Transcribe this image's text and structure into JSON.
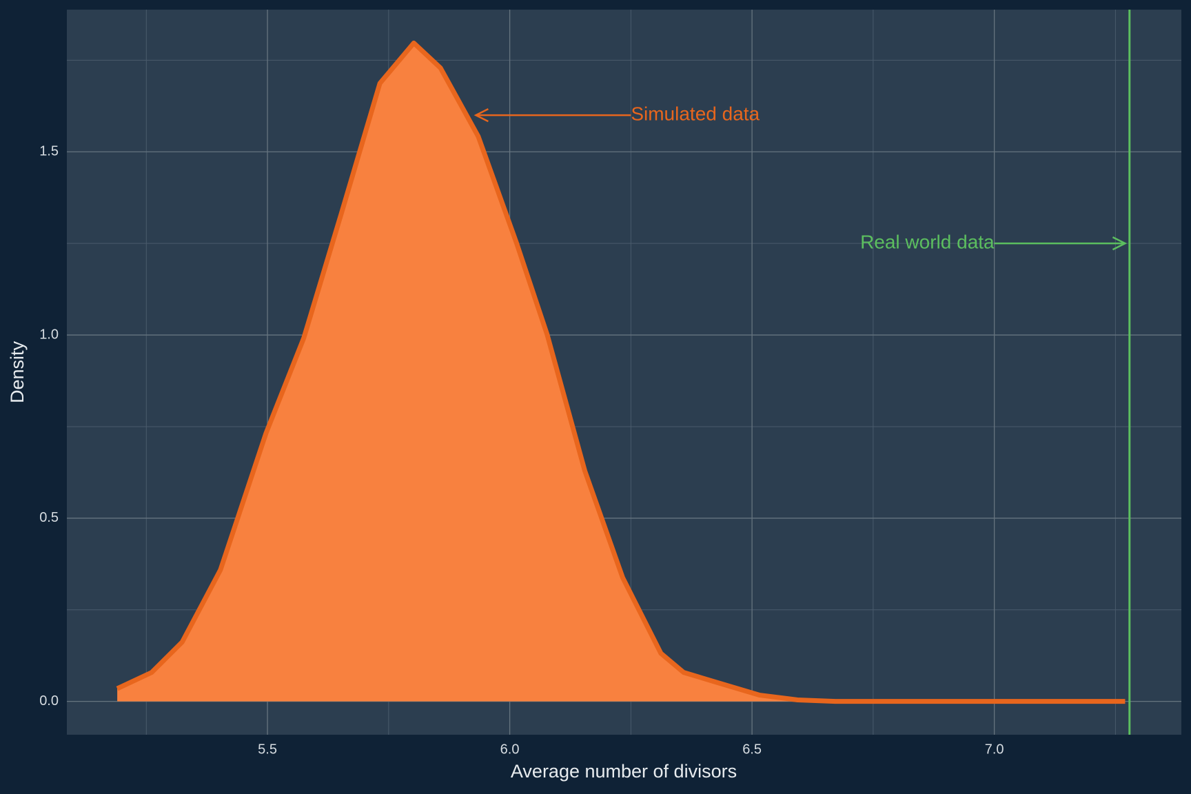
{
  "chart_data": {
    "type": "area",
    "xlabel": "Average number of divisors",
    "ylabel": "Density",
    "x": [
      5.19,
      5.261,
      5.324,
      5.403,
      5.497,
      5.575,
      5.653,
      5.732,
      5.802,
      5.857,
      5.935,
      6.014,
      6.077,
      6.155,
      6.233,
      6.312,
      6.359,
      6.437,
      6.516,
      6.594,
      6.672,
      6.8,
      7.0,
      7.27
    ],
    "series": [
      {
        "name": "Simulated data",
        "color": "#f8813f",
        "line_color": "#e8661d",
        "values": [
          0.035,
          0.079,
          0.162,
          0.359,
          0.732,
          0.992,
          1.334,
          1.687,
          1.797,
          1.729,
          1.542,
          1.251,
          1.002,
          0.629,
          0.338,
          0.131,
          0.079,
          0.048,
          0.017,
          0.004,
          0.0,
          0.0,
          0.0,
          0.0
        ]
      }
    ],
    "reference_line": {
      "name": "Real world data",
      "x": 7.279,
      "color": "#5cbf5f"
    },
    "annotations": [
      {
        "text": "Simulated data",
        "x": 6.25,
        "y": 1.6,
        "arrow_to_x": 5.93,
        "color": "#e8661d",
        "anchor": "start"
      },
      {
        "text": "Real world data",
        "x": 7.0,
        "y": 1.25,
        "arrow_to_x": 7.27,
        "color": "#5cbf5f",
        "anchor": "end"
      }
    ],
    "xlim": [
      5.086,
      7.386
    ],
    "ylim": [
      -0.091,
      1.888
    ],
    "xticks": [
      {
        "value": 5.5,
        "label": "5.5"
      },
      {
        "value": 6.0,
        "label": "6.0"
      },
      {
        "value": 6.5,
        "label": "6.5"
      },
      {
        "value": 7.0,
        "label": "7.0"
      }
    ],
    "yticks": [
      {
        "value": 0,
        "label": "0.0"
      },
      0.5,
      {
        "value": 1.0,
        "label": "1.0"
      },
      1.5
    ],
    "x_minor_ticks": [
      5.25,
      5.75,
      6.25,
      6.75,
      7.25
    ],
    "y_minor_ticks": [
      0.25,
      0.75,
      1.25,
      1.75
    ],
    "grid": true
  }
}
